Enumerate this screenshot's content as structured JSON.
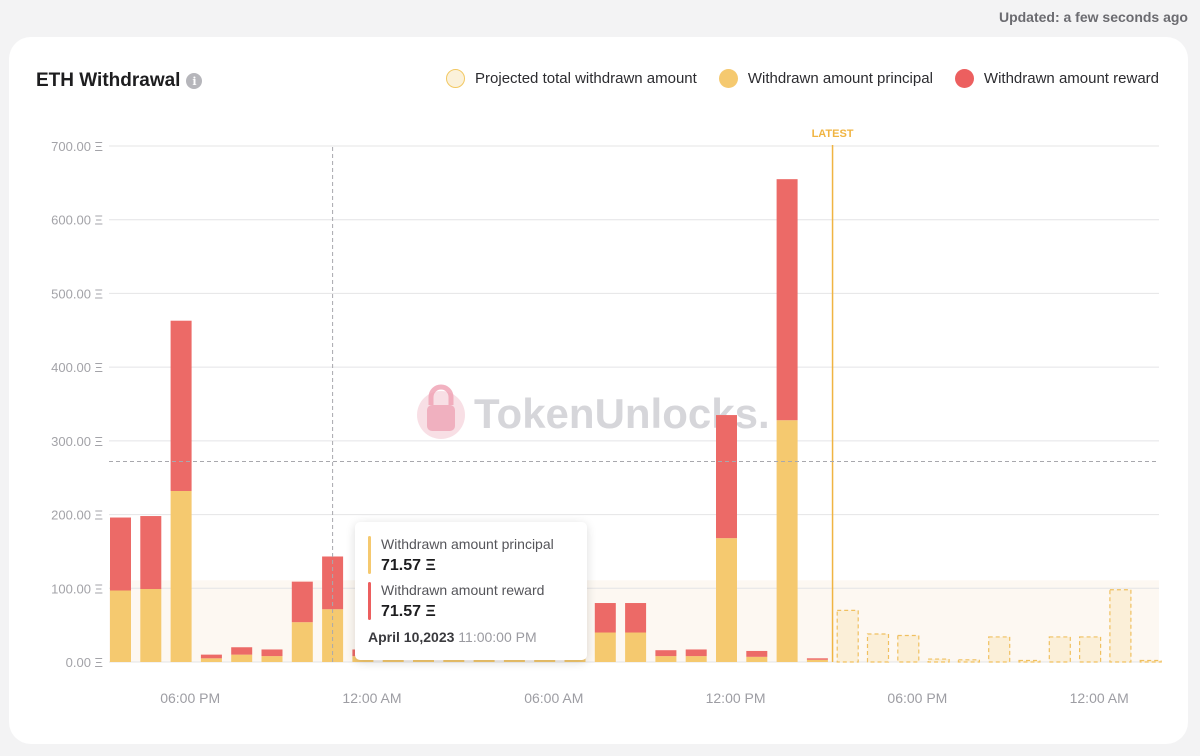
{
  "header": {
    "updated": "Updated: a few seconds ago"
  },
  "card": {
    "title": "ETH Withdrawal",
    "info_icon": "info-icon"
  },
  "legend": {
    "projected": "Projected total withdrawn amount",
    "principal": "Withdrawn amount principal",
    "reward": "Withdrawn amount reward"
  },
  "tooltip": {
    "principal_label": "Withdrawn amount principal",
    "principal_value": "71.57 Ξ",
    "reward_label": "Withdrawn amount reward",
    "reward_value": "71.57 Ξ",
    "date": "April 10,2023",
    "time": "11:00:00 PM"
  },
  "watermark": "TokenUnlocks.",
  "colors": {
    "principal": "#f5c96f",
    "reward": "#ec6a67",
    "projected_fill": "#fbefd8",
    "projected_stroke": "#f0c060",
    "latest": "#f0b442"
  },
  "chart_data": {
    "type": "bar",
    "stacked": true,
    "yticks": [
      "0.00 Ξ",
      "100.00 Ξ",
      "200.00 Ξ",
      "300.00 Ξ",
      "400.00 Ξ",
      "500.00 Ξ",
      "600.00 Ξ",
      "700.00 Ξ"
    ],
    "ylim": [
      0,
      700
    ],
    "xticks": [
      {
        "label": "06:00 PM",
        "index": 2.3
      },
      {
        "label": "12:00 AM",
        "index": 8.3
      },
      {
        "label": "06:00 AM",
        "index": 14.3
      },
      {
        "label": "12:00 PM",
        "index": 20.3
      },
      {
        "label": "06:00 PM",
        "index": 26.3
      },
      {
        "label": "12:00 AM",
        "index": 32.3
      }
    ],
    "latest_label": "LATEST",
    "latest_index": 23.5,
    "crosshair_index": 7,
    "crosshair_value": 272,
    "highlight_index": 12,
    "series": [
      {
        "name": "Withdrawn amount principal",
        "values": [
          97,
          99,
          232,
          5,
          10,
          8,
          54,
          71.57,
          8,
          7,
          8,
          8,
          140,
          8,
          8,
          8,
          40,
          40,
          8,
          8,
          168,
          7,
          328,
          3,
          null,
          null,
          null,
          null,
          null,
          null,
          null,
          null,
          null,
          null,
          null
        ]
      },
      {
        "name": "Withdrawn amount reward",
        "values": [
          99,
          99,
          231,
          5,
          10,
          9,
          55,
          71.57,
          9,
          7,
          9,
          9,
          0,
          8,
          8,
          9,
          40,
          40,
          8,
          9,
          167,
          8,
          327,
          2,
          null,
          null,
          null,
          null,
          null,
          null,
          null,
          null,
          null,
          null,
          null
        ]
      },
      {
        "name": "Projected total withdrawn amount",
        "values": [
          null,
          null,
          null,
          null,
          null,
          null,
          null,
          null,
          null,
          null,
          null,
          null,
          null,
          null,
          null,
          null,
          null,
          null,
          null,
          null,
          null,
          null,
          null,
          null,
          70,
          38,
          36,
          4,
          3,
          34,
          2,
          34,
          34,
          98,
          2
        ]
      }
    ]
  }
}
